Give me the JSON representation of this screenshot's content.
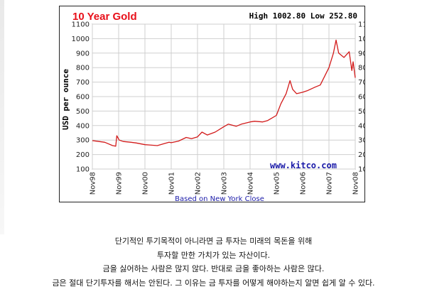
{
  "chart_data": {
    "type": "line",
    "title": "10 Year Gold",
    "high_low": "High 1002.80 Low 252.80",
    "ylabel": "USD per ounce",
    "ylim": [
      100,
      1100
    ],
    "yticks": [
      100,
      200,
      300,
      400,
      500,
      600,
      700,
      800,
      900,
      1000,
      1100
    ],
    "xlim": [
      1998.83,
      2008.83
    ],
    "xticks": [
      {
        "label": "Nov98",
        "x": 1998.83
      },
      {
        "label": "Nov99",
        "x": 1999.83
      },
      {
        "label": "Nov00",
        "x": 2000.83
      },
      {
        "label": "Nov01",
        "x": 2001.83
      },
      {
        "label": "Nov02",
        "x": 2002.83
      },
      {
        "label": "Nov03",
        "x": 2003.83
      },
      {
        "label": "Nov04",
        "x": 2004.83
      },
      {
        "label": "Nov05",
        "x": 2005.83
      },
      {
        "label": "Nov06",
        "x": 2006.83
      },
      {
        "label": "Nov07",
        "x": 2007.83
      },
      {
        "label": "Nov08",
        "x": 2008.83
      }
    ],
    "grid": true,
    "line_color": "#d21a1a",
    "series": [
      {
        "x": [
          1998.83,
          1999.0,
          1999.3,
          1999.6,
          1999.72,
          1999.76,
          1999.85,
          2000.0,
          2000.3,
          2000.5,
          2000.83,
          2001.0,
          2001.3,
          2001.5,
          2001.75,
          2001.83,
          2002.1,
          2002.4,
          2002.6,
          2002.83,
          2003.0,
          2003.2,
          2003.5,
          2003.83,
          2004.0,
          2004.3,
          2004.5,
          2004.83,
          2005.0,
          2005.3,
          2005.5,
          2005.83,
          2006.0,
          2006.2,
          2006.35,
          2006.45,
          2006.6,
          2006.83,
          2007.0,
          2007.3,
          2007.5,
          2007.83,
          2008.0,
          2008.1,
          2008.2,
          2008.4,
          2008.6,
          2008.7,
          2008.75,
          2008.83
        ],
        "y": [
          296,
          292,
          285,
          262,
          258,
          330,
          300,
          290,
          285,
          280,
          268,
          266,
          262,
          272,
          285,
          282,
          292,
          318,
          310,
          322,
          355,
          335,
          355,
          392,
          410,
          395,
          410,
          425,
          430,
          425,
          435,
          470,
          550,
          620,
          710,
          650,
          620,
          630,
          640,
          665,
          680,
          800,
          900,
          990,
          900,
          870,
          910,
          780,
          840,
          730
        ]
      }
    ]
  },
  "footer": "Based on New York Close",
  "watermark": "www.kitco.com",
  "caption": [
    "단기적인 투기목적이 아니라면 금 투자는 미래의 목돈을 위해",
    "투자할 만한 가치가 있는 자산이다.",
    "금을 싫어하는 사람은 많지 않다. 반대로 금을 좋아하는 사람은 많다.",
    "금은 절대 단기투자를 해서는 안된다. 그 이유는 금 투자를 어떻게 해야하는지 알면 쉽게 알 수 있다."
  ]
}
